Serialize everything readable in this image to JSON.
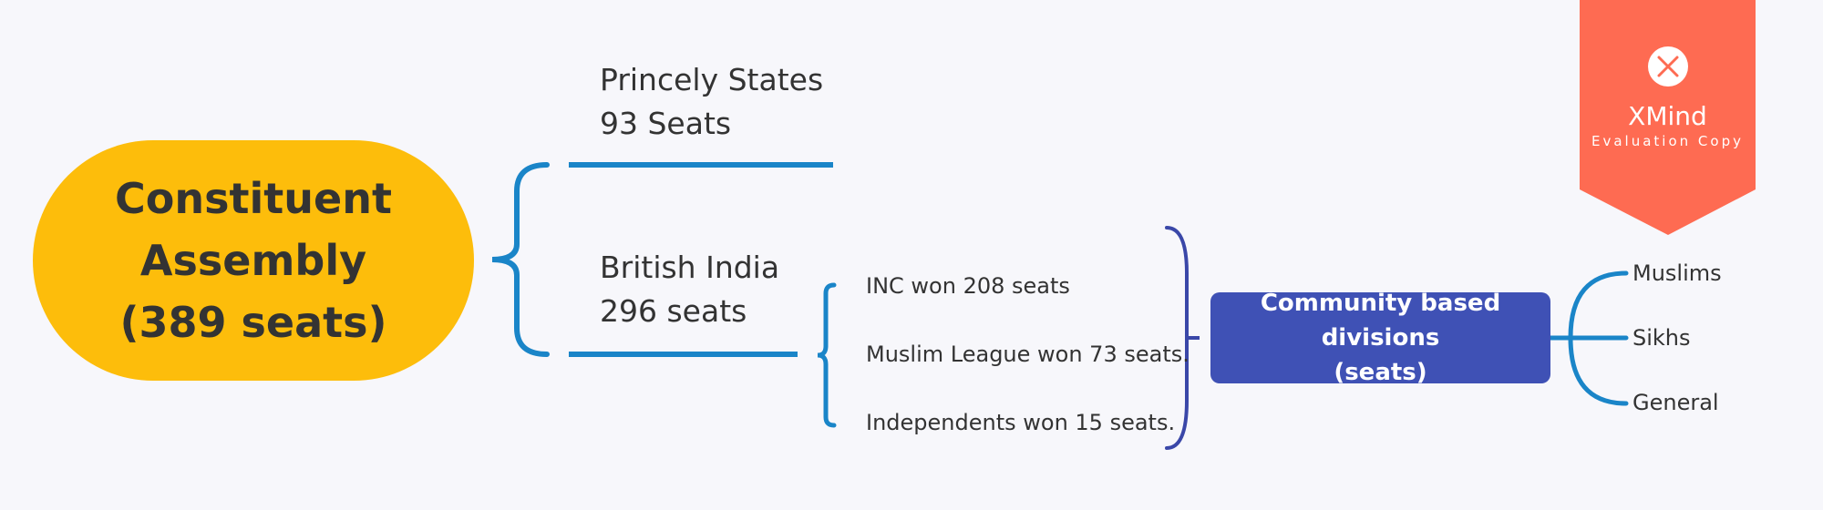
{
  "root": {
    "label": "Constituent\nAssembly\n(389 seats)"
  },
  "branches": {
    "princely": {
      "line1": "Princely States",
      "line2": "93 Seats"
    },
    "british": {
      "line1": "British India",
      "line2": "296 seats"
    }
  },
  "british_results": [
    "INC won 208 seats",
    "Muslim League won 73 seats.",
    "Independents won 15 seats."
  ],
  "community": {
    "line1": "Community based divisions",
    "line2": "(seats)"
  },
  "communities": [
    "Muslims",
    "Sikhs",
    "General"
  ],
  "watermark": {
    "title": "XMind",
    "subtitle": "Evaluation Copy",
    "icon": "xmind-logo-icon"
  },
  "colors": {
    "root_fill": "#fdbd0b",
    "branch_line": "#1a85c8",
    "community_fill": "#3f51b5",
    "community_bracket": "#3a47a8",
    "watermark_fill": "#fe6b52"
  }
}
